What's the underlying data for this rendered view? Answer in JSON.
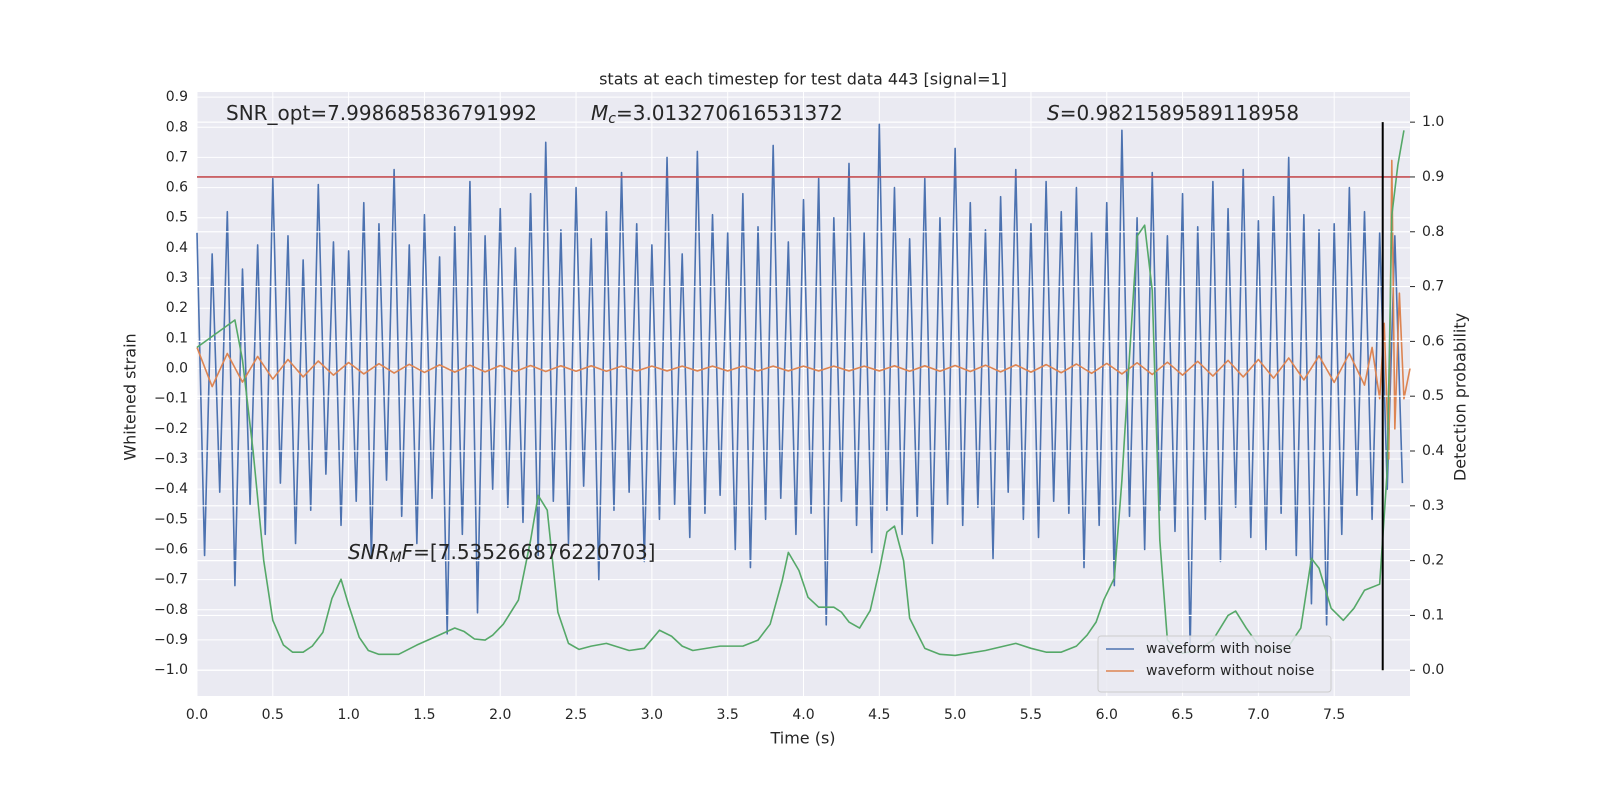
{
  "chart_data": {
    "type": "line",
    "title": "stats at each timestep for test data 443 [signal=1]",
    "x_label": "Time (s)",
    "y_label": "Whitened strain",
    "y2_label": "Detection probability",
    "xlim": [
      0,
      8
    ],
    "ylim": [
      -1.086,
      0.917
    ],
    "y2lim": [
      -0.047,
      1.055
    ],
    "xticks": [
      {
        "value": 0,
        "label": "0.0"
      },
      {
        "value": 0.5,
        "label": "0.5"
      },
      {
        "value": 1,
        "label": "1.0"
      },
      {
        "value": 1.5,
        "label": "1.5"
      },
      {
        "value": 2,
        "label": "2.0"
      },
      {
        "value": 2.5,
        "label": "2.5"
      },
      {
        "value": 3,
        "label": "3.0"
      },
      {
        "value": 3.5,
        "label": "3.5"
      },
      {
        "value": 4,
        "label": "4.0"
      },
      {
        "value": 4.5,
        "label": "4.5"
      },
      {
        "value": 5,
        "label": "5.0"
      },
      {
        "value": 5.5,
        "label": "5.5"
      },
      {
        "value": 6,
        "label": "6.0"
      },
      {
        "value": 6.5,
        "label": "6.5"
      },
      {
        "value": 7,
        "label": "7.0"
      },
      {
        "value": 7.5,
        "label": "7.5"
      }
    ],
    "yticks": [
      0.9,
      0.8,
      0.7,
      0.6,
      0.5,
      0.4,
      0.3,
      0.2,
      0.1,
      {
        "value": 0,
        "label": "0.0"
      },
      {
        "value": -0.1,
        "label": "−0.1"
      },
      {
        "value": -0.2,
        "label": "−0.2"
      },
      {
        "value": -0.3,
        "label": "−0.3"
      },
      {
        "value": -0.4,
        "label": "−0.4"
      },
      {
        "value": -0.5,
        "label": "−0.5"
      },
      {
        "value": -0.6,
        "label": "−0.6"
      },
      {
        "value": -0.7,
        "label": "−0.7"
      },
      {
        "value": -0.8,
        "label": "−0.8"
      },
      {
        "value": -0.9,
        "label": "−0.9"
      },
      {
        "value": -1,
        "label": "−1.0"
      }
    ],
    "y2ticks": [
      {
        "value": 1,
        "label": "1.0"
      },
      0.9,
      0.8,
      0.7,
      0.6,
      0.5,
      0.4,
      0.3,
      0.2,
      0.1,
      {
        "value": 0,
        "label": "0.0"
      }
    ],
    "grid": true,
    "legend": "lower right",
    "annotations": [
      {
        "text": "SNR_opt=7.998685836791992"
      },
      {
        "symbol": "M",
        "subscript": "c",
        "text": "=3.013270616531372"
      },
      {
        "symbol": "S",
        "text": "=0.9821589589118958"
      },
      {
        "symbol": "SNR",
        "subscript": "M",
        "suffix": "F",
        "text": "=[7.535266876220703]"
      }
    ],
    "hlines": [
      {
        "value": 0.9,
        "axis": "y2",
        "color": "#c44e52"
      }
    ],
    "vlines": [
      {
        "x": 7.82,
        "ymin": 0,
        "ymax": 1,
        "axis": "y2",
        "color": "#000000"
      }
    ],
    "series": [
      {
        "name": "waveform with noise",
        "color": "#4c72b0",
        "axis": "y",
        "x": [
          0,
          0.05,
          0.1,
          0.15,
          0.2,
          0.25,
          0.3,
          0.35,
          0.4,
          0.45,
          0.5,
          0.55,
          0.6,
          0.65,
          0.7,
          0.75,
          0.8,
          0.85,
          0.9,
          0.95,
          1,
          1.05,
          1.1,
          1.15,
          1.2,
          1.25,
          1.3,
          1.35,
          1.4,
          1.45,
          1.5,
          1.55,
          1.6,
          1.65,
          1.7,
          1.75,
          1.8,
          1.85,
          1.9,
          1.95,
          2,
          2.05,
          2.1,
          2.15,
          2.2,
          2.25,
          2.3,
          2.35,
          2.4,
          2.45,
          2.5,
          2.55,
          2.6,
          2.65,
          2.7,
          2.75,
          2.8,
          2.85,
          2.9,
          2.95,
          3,
          3.05,
          3.1,
          3.15,
          3.2,
          3.25,
          3.3,
          3.35,
          3.4,
          3.45,
          3.5,
          3.55,
          3.6,
          3.65,
          3.7,
          3.75,
          3.8,
          3.85,
          3.9,
          3.95,
          4,
          4.05,
          4.1,
          4.15,
          4.2,
          4.25,
          4.3,
          4.35,
          4.4,
          4.45,
          4.5,
          4.55,
          4.6,
          4.65,
          4.7,
          4.75,
          4.8,
          4.85,
          4.9,
          4.95,
          5,
          5.05,
          5.1,
          5.15,
          5.2,
          5.25,
          5.3,
          5.35,
          5.4,
          5.45,
          5.5,
          5.55,
          5.6,
          5.65,
          5.7,
          5.75,
          5.8,
          5.85,
          5.9,
          5.95,
          6,
          6.05,
          6.1,
          6.15,
          6.2,
          6.25,
          6.3,
          6.35,
          6.4,
          6.45,
          6.5,
          6.55,
          6.6,
          6.65,
          6.7,
          6.75,
          6.8,
          6.85,
          6.9,
          6.95,
          7,
          7.05,
          7.1,
          7.15,
          7.2,
          7.25,
          7.3,
          7.35,
          7.4,
          7.45,
          7.5,
          7.55,
          7.6,
          7.65,
          7.7,
          7.75,
          7.8,
          7.85,
          7.9,
          7.95
        ],
        "values": [
          0.45,
          -0.62,
          0.38,
          -0.41,
          0.52,
          -0.72,
          0.33,
          -0.45,
          0.41,
          -0.55,
          0.63,
          -0.38,
          0.44,
          -0.58,
          0.36,
          -0.47,
          0.61,
          -0.35,
          0.42,
          -0.52,
          0.39,
          -0.44,
          0.55,
          -0.63,
          0.48,
          -0.37,
          0.66,
          -0.49,
          0.41,
          -0.58,
          0.51,
          -0.43,
          0.37,
          -0.88,
          0.47,
          -0.55,
          0.62,
          -0.81,
          0.44,
          -0.4,
          0.53,
          -0.46,
          0.4,
          -0.51,
          0.58,
          -0.62,
          0.75,
          -0.44,
          0.46,
          -0.58,
          0.6,
          -0.39,
          0.43,
          -0.7,
          0.52,
          -0.47,
          0.65,
          -0.41,
          0.48,
          -0.64,
          0.41,
          -0.5,
          0.7,
          -0.45,
          0.38,
          -0.56,
          0.72,
          -0.48,
          0.51,
          -0.42,
          0.45,
          -0.6,
          0.58,
          -0.66,
          0.47,
          -0.5,
          0.74,
          -0.43,
          0.42,
          -0.55,
          0.56,
          -0.48,
          0.63,
          -0.85,
          0.5,
          -0.44,
          0.68,
          -0.52,
          0.45,
          -0.61,
          0.81,
          -0.47,
          0.6,
          -0.55,
          0.43,
          -0.49,
          0.63,
          -0.58,
          0.5,
          -0.45,
          0.73,
          -0.52,
          0.55,
          -0.46,
          0.46,
          -0.63,
          0.57,
          -0.41,
          0.66,
          -0.5,
          0.48,
          -0.56,
          0.62,
          -0.44,
          0.52,
          -0.48,
          0.6,
          -0.66,
          0.45,
          -0.52,
          0.55,
          -0.72,
          0.79,
          -0.49,
          0.5,
          -0.6,
          0.65,
          -0.47,
          0.44,
          -0.54,
          0.58,
          -0.93,
          0.47,
          -0.5,
          0.62,
          -0.64,
          0.53,
          -0.46,
          0.66,
          -0.56,
          0.49,
          -0.6,
          0.57,
          -0.48,
          0.7,
          -0.62,
          0.51,
          -0.78,
          0.46,
          -0.85,
          0.48,
          -0.55,
          0.6,
          -0.42,
          0.52,
          -0.5,
          0.45,
          -0.4,
          0.44,
          -0.38
        ]
      },
      {
        "name": "waveform without noise",
        "color": "#dd8452",
        "axis": "y",
        "x": [
          0,
          0.1,
          0.2,
          0.3,
          0.4,
          0.5,
          0.6,
          0.7,
          0.8,
          0.9,
          1,
          1.1,
          1.2,
          1.3,
          1.4,
          1.5,
          1.6,
          1.7,
          1.8,
          1.9,
          2,
          2.1,
          2.2,
          2.3,
          2.4,
          2.5,
          2.6,
          2.7,
          2.8,
          2.9,
          3,
          3.1,
          3.2,
          3.3,
          3.4,
          3.5,
          3.6,
          3.7,
          3.8,
          3.9,
          4,
          4.1,
          4.2,
          4.3,
          4.4,
          4.5,
          4.6,
          4.7,
          4.8,
          4.9,
          5,
          5.1,
          5.2,
          5.3,
          5.4,
          5.5,
          5.6,
          5.7,
          5.8,
          5.9,
          6,
          6.1,
          6.2,
          6.3,
          6.4,
          6.5,
          6.6,
          6.7,
          6.8,
          6.9,
          7,
          7.1,
          7.2,
          7.3,
          7.4,
          7.5,
          7.6,
          7.7,
          7.75,
          7.8,
          7.83,
          7.86,
          7.88,
          7.9,
          7.93,
          7.96,
          8
        ],
        "values": [
          0.07,
          -0.06,
          0.05,
          -0.045,
          0.04,
          -0.035,
          0.03,
          -0.028,
          0.025,
          -0.022,
          0.02,
          -0.018,
          0.016,
          -0.015,
          0.014,
          -0.013,
          0.012,
          -0.012,
          0.011,
          -0.011,
          0.01,
          -0.01,
          0.01,
          -0.01,
          0.009,
          -0.009,
          0.009,
          -0.009,
          0.008,
          -0.008,
          0.008,
          -0.008,
          0.008,
          -0.008,
          0.008,
          -0.008,
          0.008,
          -0.008,
          0.008,
          -0.008,
          0.008,
          -0.008,
          0.008,
          -0.008,
          0.008,
          -0.008,
          0.009,
          -0.009,
          0.009,
          -0.009,
          0.01,
          -0.01,
          0.011,
          -0.011,
          0.012,
          -0.012,
          0.013,
          -0.014,
          0.015,
          -0.016,
          0.017,
          -0.018,
          0.019,
          -0.02,
          0.021,
          -0.022,
          0.024,
          -0.025,
          0.027,
          -0.028,
          0.03,
          -0.032,
          0.035,
          -0.038,
          0.042,
          -0.046,
          0.05,
          -0.055,
          0.07,
          -0.1,
          0.15,
          -0.3,
          0.69,
          -0.2,
          0.25,
          -0.1,
          0
        ]
      },
      {
        "color": "#55a868",
        "axis": "y2",
        "x": [
          0,
          0.25,
          0.3,
          0.37,
          0.44,
          0.5,
          0.57,
          0.63,
          0.7,
          0.76,
          0.83,
          0.89,
          0.95,
          1,
          1.07,
          1.13,
          1.2,
          1.33,
          1.45,
          1.58,
          1.7,
          1.76,
          1.83,
          1.9,
          1.95,
          2.02,
          2.12,
          2.2,
          2.25,
          2.31,
          2.38,
          2.45,
          2.52,
          2.6,
          2.7,
          2.85,
          2.95,
          3.05,
          3.13,
          3.2,
          3.27,
          3.45,
          3.6,
          3.7,
          3.78,
          3.86,
          3.9,
          3.97,
          4.03,
          4.1,
          4.2,
          4.25,
          4.3,
          4.37,
          4.44,
          4.5,
          4.55,
          4.6,
          4.66,
          4.7,
          4.8,
          4.9,
          5,
          5.2,
          5.4,
          5.5,
          5.6,
          5.7,
          5.8,
          5.87,
          5.93,
          5.98,
          6.05,
          6.1,
          6.14,
          6.2,
          6.25,
          6.3,
          6.35,
          6.4,
          6.5,
          6.6,
          6.7,
          6.8,
          6.85,
          6.92,
          7,
          7.05,
          7.1,
          7.2,
          7.28,
          7.35,
          7.4,
          7.48,
          7.56,
          7.63,
          7.7,
          7.8,
          7.85,
          7.88,
          7.92,
          7.96
        ],
        "values": [
          0.589,
          0.639,
          0.566,
          0.4,
          0.2,
          0.091,
          0.046,
          0.033,
          0.033,
          0.044,
          0.069,
          0.131,
          0.166,
          0.119,
          0.06,
          0.036,
          0.029,
          0.029,
          0.046,
          0.062,
          0.077,
          0.071,
          0.057,
          0.055,
          0.064,
          0.084,
          0.128,
          0.237,
          0.319,
          0.292,
          0.106,
          0.049,
          0.038,
          0.044,
          0.049,
          0.036,
          0.04,
          0.073,
          0.062,
          0.044,
          0.036,
          0.044,
          0.044,
          0.055,
          0.084,
          0.164,
          0.215,
          0.182,
          0.133,
          0.115,
          0.115,
          0.106,
          0.088,
          0.077,
          0.109,
          0.182,
          0.252,
          0.263,
          0.2,
          0.095,
          0.04,
          0.029,
          0.027,
          0.036,
          0.049,
          0.04,
          0.033,
          0.033,
          0.044,
          0.064,
          0.088,
          0.128,
          0.168,
          0.347,
          0.529,
          0.792,
          0.812,
          0.693,
          0.237,
          0.055,
          0.031,
          0.036,
          0.055,
          0.1,
          0.108,
          0.077,
          0.046,
          0.033,
          0.036,
          0.044,
          0.077,
          0.204,
          0.186,
          0.113,
          0.091,
          0.113,
          0.146,
          0.157,
          0.365,
          0.83,
          0.922,
          0.985
        ]
      }
    ]
  }
}
